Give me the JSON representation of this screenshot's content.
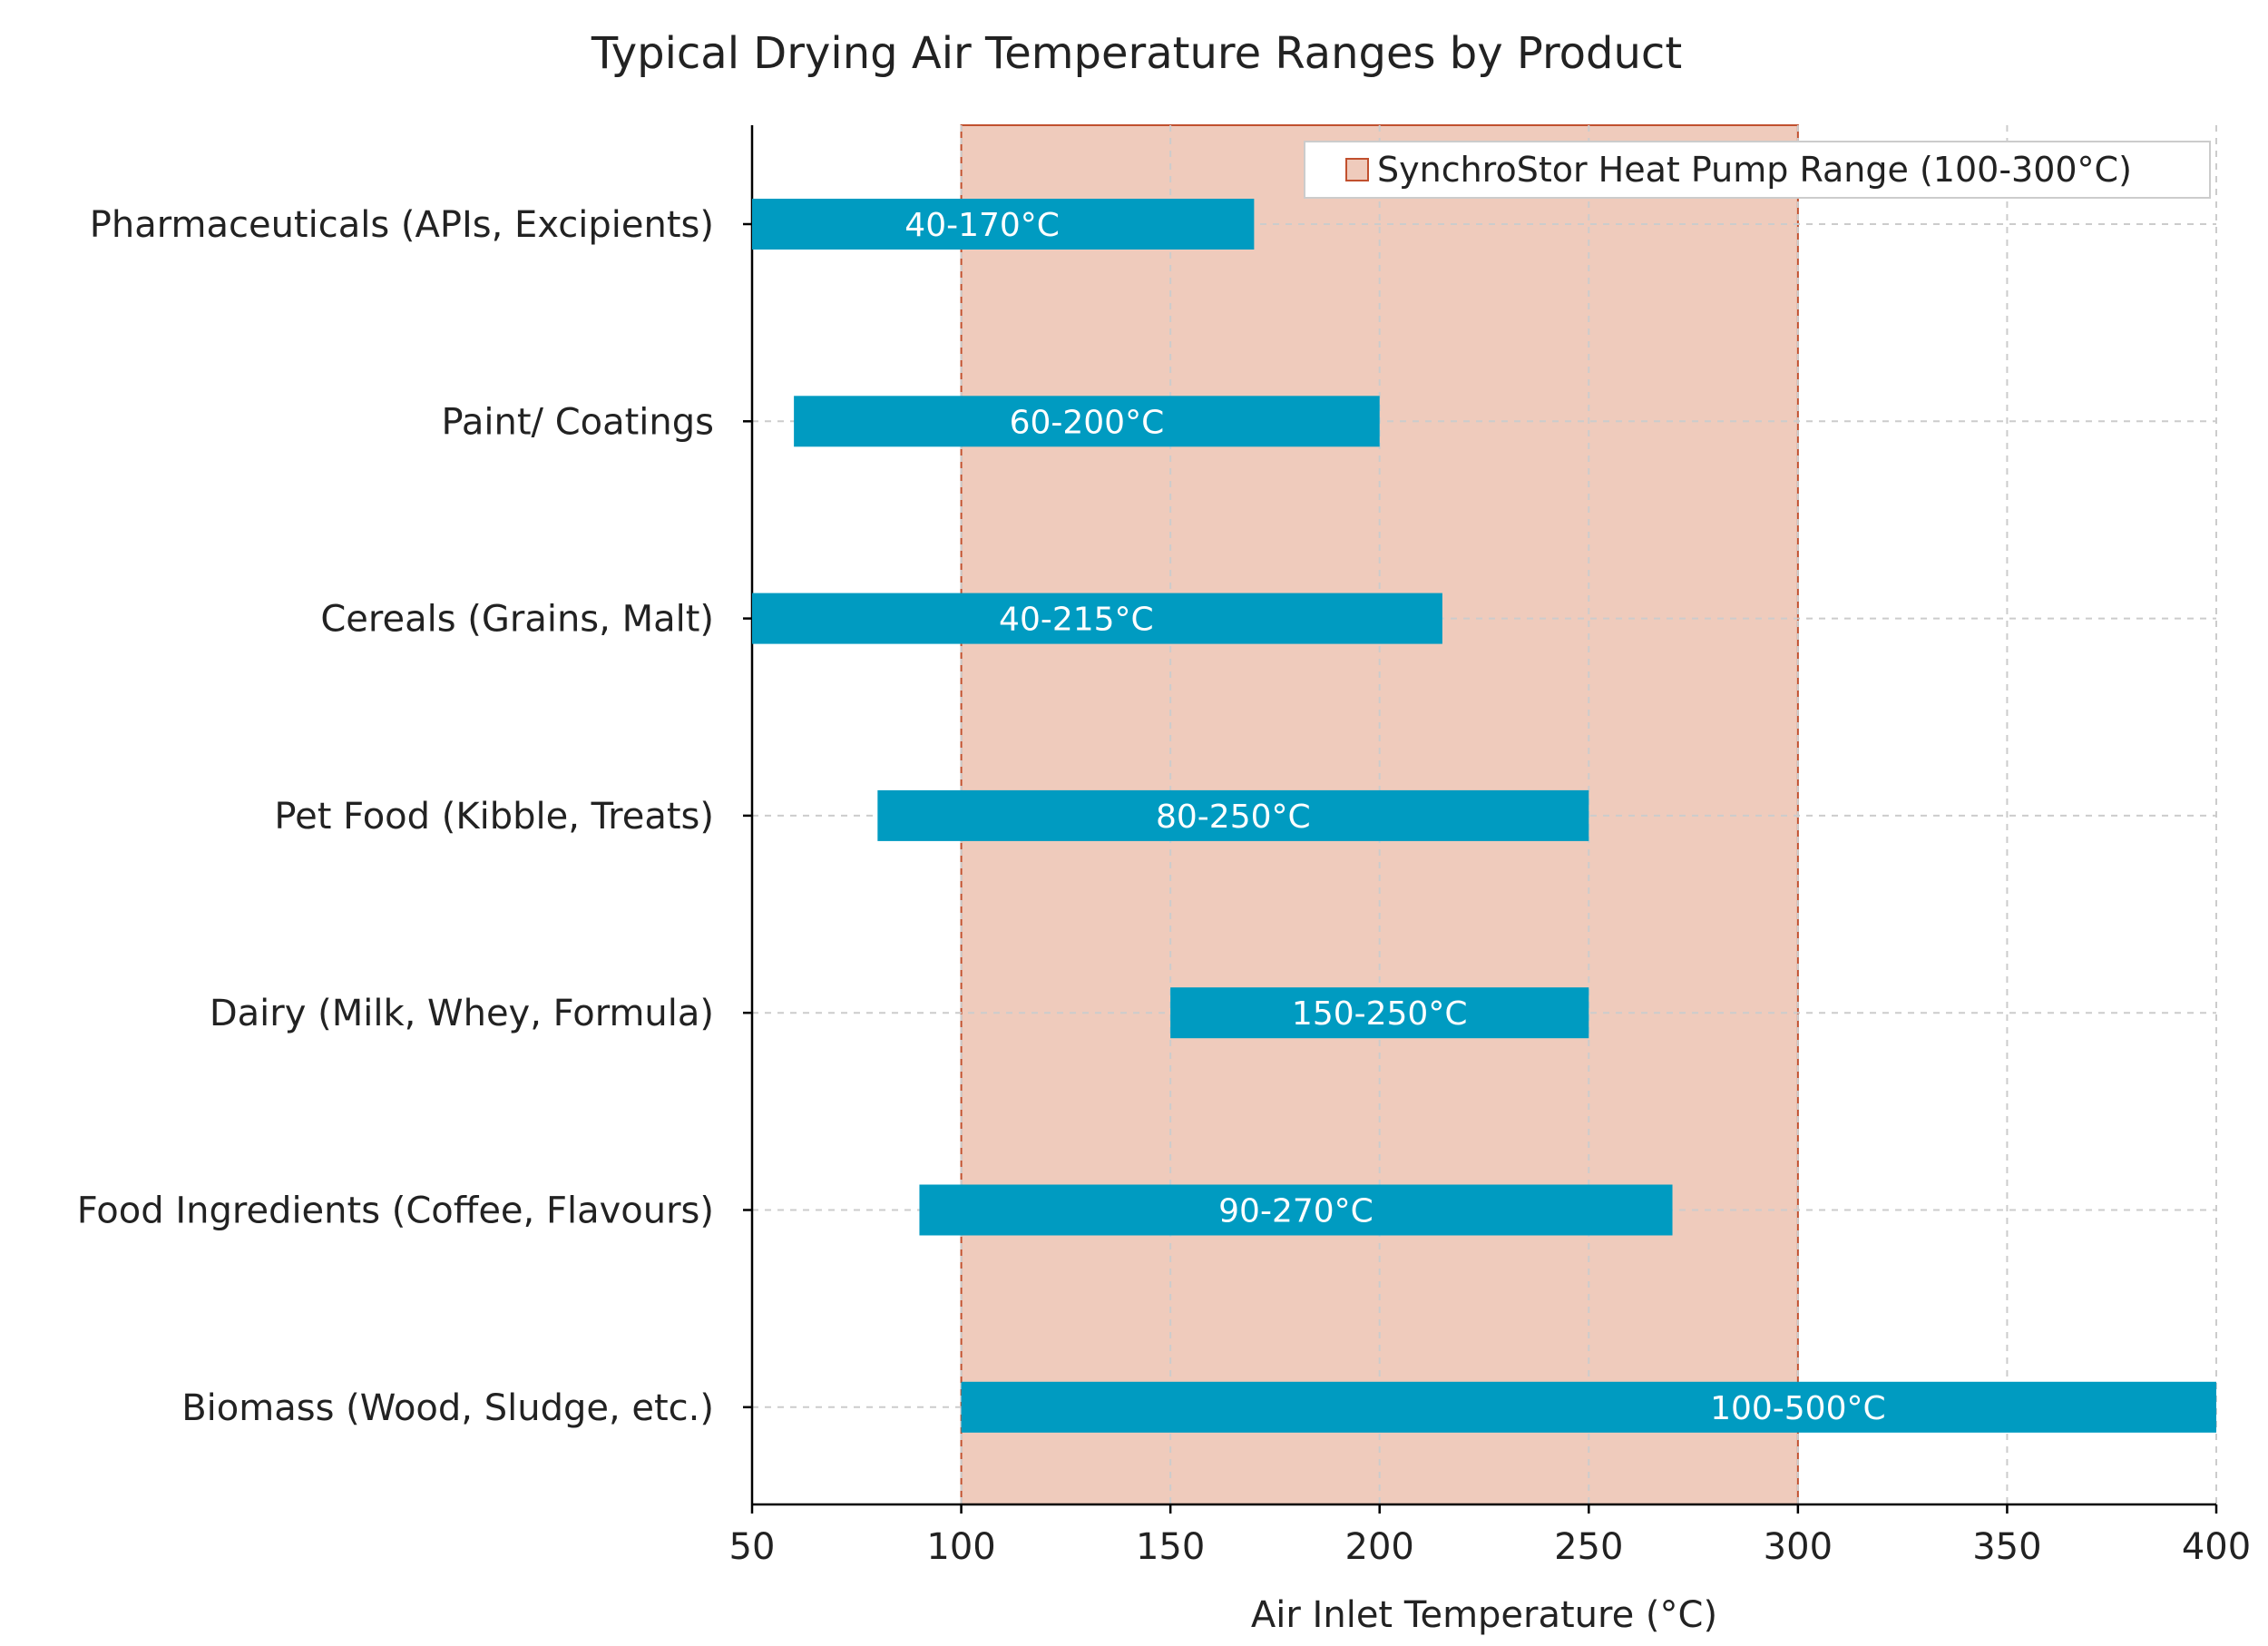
{
  "chart_data": {
    "type": "bar",
    "orientation": "horizontal",
    "subtype": "range",
    "title": "Typical Drying Air Temperature Ranges by Product",
    "xlabel": "Air Inlet Temperature (°C)",
    "ylabel": "",
    "xlim": [
      50,
      400
    ],
    "xticks": [
      50,
      100,
      150,
      200,
      250,
      300,
      350,
      400
    ],
    "grid": true,
    "categories": [
      "Pharmaceuticals (APIs, Excipients)",
      "Paint/ Coatings",
      "Cereals (Grains, Malt)",
      "Pet Food (Kibble, Treats)",
      "Dairy (Milk, Whey, Formula)",
      "Food Ingredients (Coffee, Flavours)",
      "Biomass (Wood, Sludge, etc.)"
    ],
    "ranges": [
      {
        "min": 40,
        "max": 170,
        "label": "40-170°C"
      },
      {
        "min": 60,
        "max": 200,
        "label": "60-200°C"
      },
      {
        "min": 40,
        "max": 215,
        "label": "40-215°C"
      },
      {
        "min": 80,
        "max": 250,
        "label": "80-250°C"
      },
      {
        "min": 150,
        "max": 250,
        "label": "150-250°C"
      },
      {
        "min": 90,
        "max": 270,
        "label": "90-270°C"
      },
      {
        "min": 100,
        "max": 500,
        "label": "100-500°C"
      }
    ],
    "highlight_band": {
      "min": 100,
      "max": 300,
      "label": "SynchroStor Heat Pump Range (100-300°C)"
    },
    "legend": {
      "location": "top-right",
      "entries": [
        "SynchroStor Heat Pump Range (100-300°C)"
      ]
    },
    "colors": {
      "bar": "#009bc1",
      "band_fill": "#efcbbc",
      "band_edge": "#c1502e"
    }
  }
}
